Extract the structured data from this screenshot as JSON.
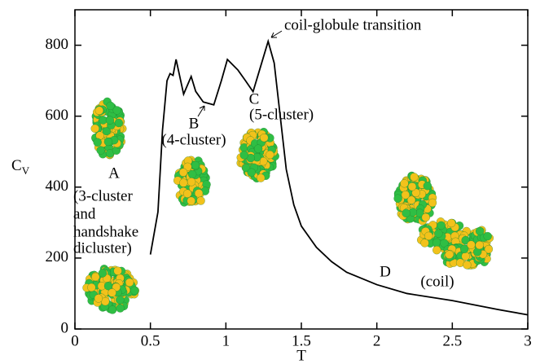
{
  "chart_data": {
    "type": "line",
    "x_label": "T",
    "y_label": "C",
    "y_label_sub": "V",
    "x": [
      0.5,
      0.55,
      0.58,
      0.61,
      0.63,
      0.65,
      0.67,
      0.72,
      0.77,
      0.8,
      0.85,
      0.92,
      0.97,
      1.01,
      1.08,
      1.13,
      1.18,
      1.23,
      1.28,
      1.32,
      1.36,
      1.4,
      1.45,
      1.5,
      1.6,
      1.7,
      1.8,
      2.0,
      2.2,
      2.5,
      2.8,
      3.0
    ],
    "values": [
      210,
      330,
      560,
      700,
      720,
      715,
      760,
      662,
      712,
      670,
      640,
      632,
      700,
      760,
      730,
      700,
      669,
      740,
      811,
      750,
      600,
      450,
      350,
      290,
      230,
      190,
      160,
      125,
      100,
      80,
      55,
      40
    ],
    "color": "#000000",
    "xlim": [
      0,
      3
    ],
    "xticks": [
      0,
      0.5,
      1,
      1.5,
      2,
      2.5,
      3
    ],
    "ylim": [
      0,
      900
    ],
    "yticks": [
      0,
      200,
      400,
      600,
      800
    ],
    "annotations": [
      "coil-globule transition",
      "A",
      "(3-cluster",
      "and",
      "handshake",
      "dicluster)",
      "B",
      "(4-cluster)",
      "C",
      "(5-cluster)",
      "D",
      "(coil)"
    ]
  }
}
